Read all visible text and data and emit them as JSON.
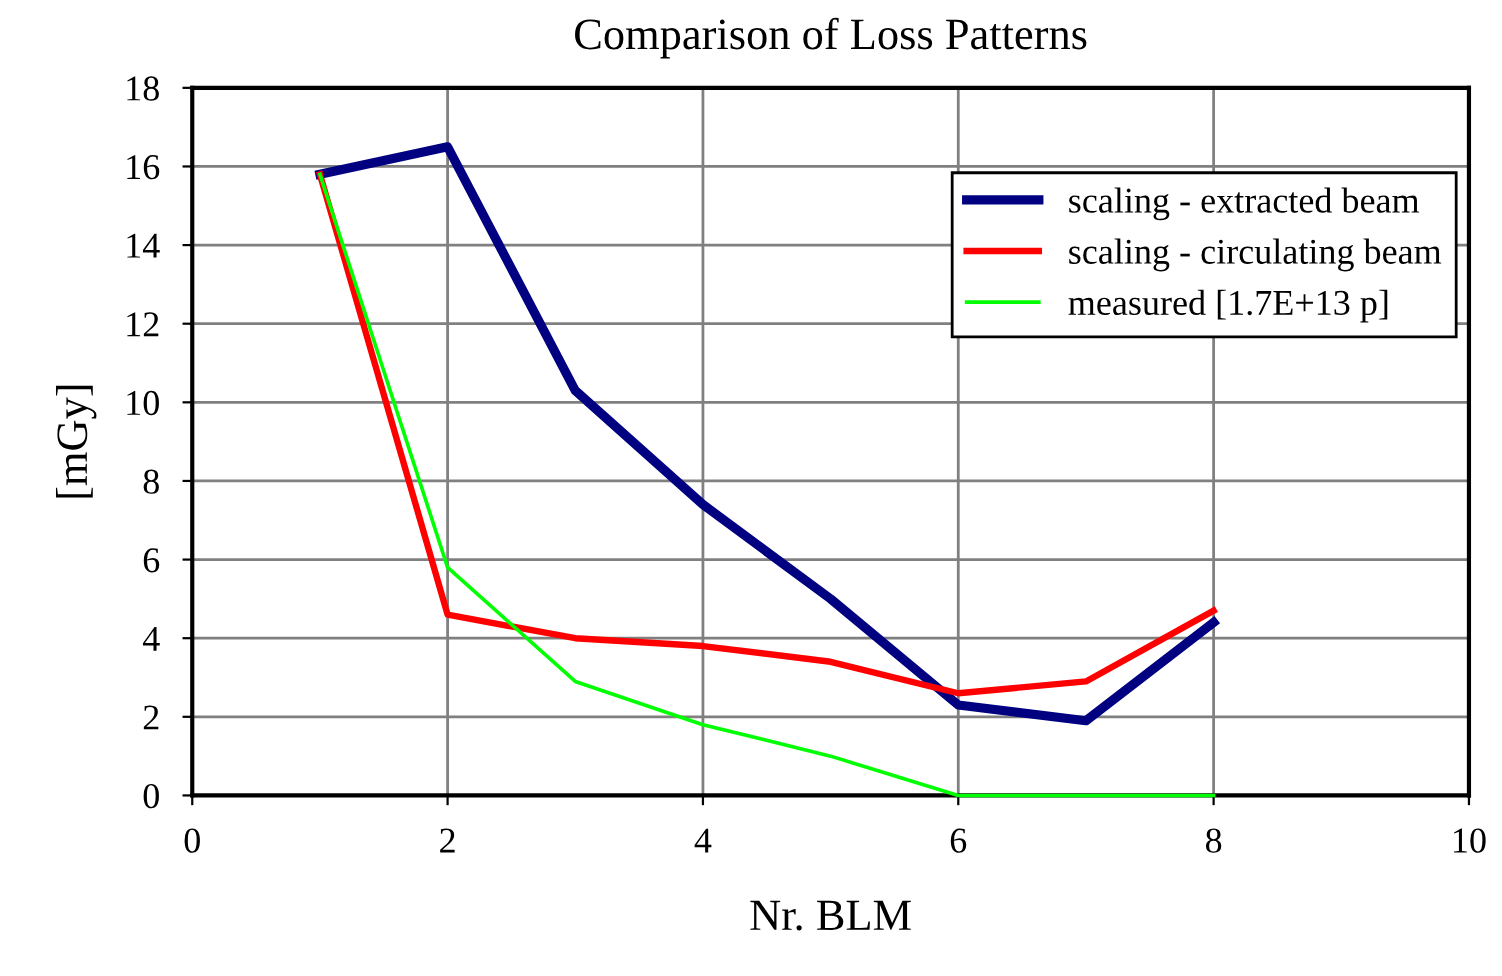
{
  "chart_data": {
    "type": "line",
    "title": "Comparison of Loss Patterns",
    "xlabel": "Nr. BLM",
    "ylabel": "[mGy]",
    "x": [
      1,
      2,
      3,
      4,
      5,
      6,
      7,
      8
    ],
    "series": [
      {
        "name": "scaling - extracted beam",
        "color": "#000080",
        "values": [
          15.8,
          16.5,
          10.3,
          7.4,
          5.0,
          2.3,
          1.9,
          4.4
        ]
      },
      {
        "name": "scaling - circulating beam",
        "color": "#ff0000",
        "values": [
          15.8,
          4.6,
          4.0,
          3.8,
          3.4,
          2.6,
          2.9,
          4.7
        ]
      },
      {
        "name": "measured [1.7E+13 p]",
        "color": "#00ff00",
        "values": [
          15.8,
          5.8,
          2.9,
          1.8,
          1.0,
          0,
          0,
          0
        ]
      }
    ],
    "xlim": [
      0,
      10
    ],
    "xticks": [
      0,
      2,
      4,
      6,
      8,
      10
    ],
    "ylim": [
      0,
      18
    ],
    "yticks": [
      0,
      2,
      4,
      6,
      8,
      10,
      12,
      14,
      16,
      18
    ],
    "grid": true,
    "legend": "top right",
    "marker": "none",
    "line_style": "solid"
  }
}
